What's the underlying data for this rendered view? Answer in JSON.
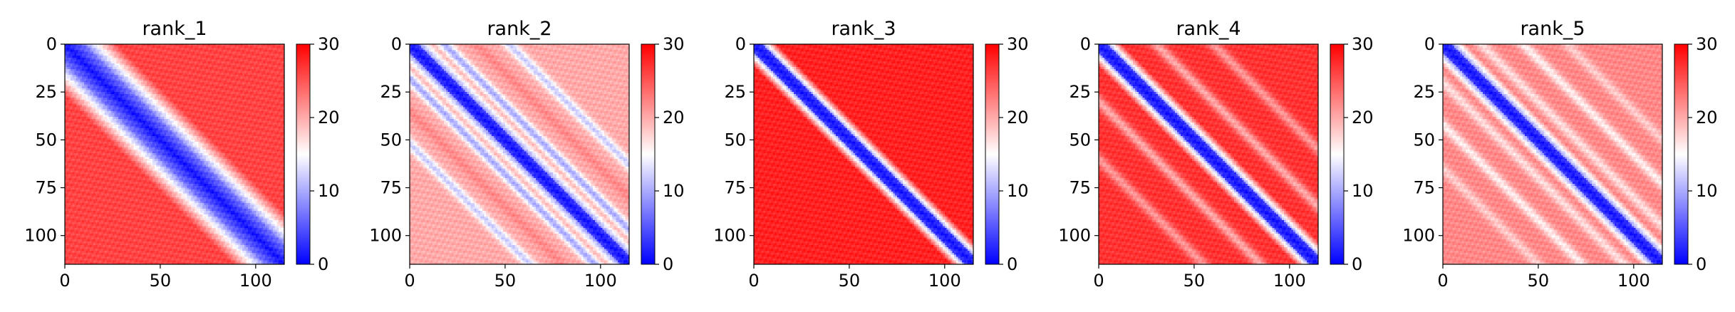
{
  "colormap": {
    "low": "#0000ff",
    "mid": "#ffffff",
    "high": "#ff0000"
  },
  "chart_data": [
    {
      "type": "heatmap",
      "title": "rank_1",
      "size": 115,
      "xticks": [
        0,
        50,
        100
      ],
      "yticks": [
        0,
        25,
        50,
        75,
        100
      ],
      "clim": [
        0,
        30
      ],
      "colorbar_ticks": [
        0,
        10,
        20,
        30
      ],
      "band_width": 10,
      "background_value": 26,
      "crossbands": []
    },
    {
      "type": "heatmap",
      "title": "rank_2",
      "size": 115,
      "xticks": [
        0,
        50,
        100
      ],
      "yticks": [
        0,
        25,
        50,
        75,
        100
      ],
      "clim": [
        0,
        30
      ],
      "colorbar_ticks": [
        0,
        10,
        20,
        30
      ],
      "band_width": 4,
      "background_value": 20,
      "crossbands": [
        {
          "offset": 18,
          "value": 10
        },
        {
          "offset": 35,
          "value": 22
        },
        {
          "offset": 52,
          "value": 12
        }
      ]
    },
    {
      "type": "heatmap",
      "title": "rank_3",
      "size": 115,
      "xticks": [
        0,
        50,
        100
      ],
      "yticks": [
        0,
        25,
        50,
        75,
        100
      ],
      "clim": [
        0,
        30
      ],
      "colorbar_ticks": [
        0,
        10,
        20,
        30
      ],
      "band_width": 4,
      "background_value": 28,
      "crossbands": []
    },
    {
      "type": "heatmap",
      "title": "rank_4",
      "size": 115,
      "xticks": [
        0,
        50,
        100
      ],
      "yticks": [
        0,
        25,
        50,
        75,
        100
      ],
      "clim": [
        0,
        30
      ],
      "colorbar_ticks": [
        0,
        10,
        20,
        30
      ],
      "band_width": 4,
      "background_value": 27,
      "crossbands": [
        {
          "offset": 30,
          "value": 20
        },
        {
          "offset": 60,
          "value": 21
        }
      ]
    },
    {
      "type": "heatmap",
      "title": "rank_5",
      "size": 115,
      "xticks": [
        0,
        50,
        100
      ],
      "yticks": [
        0,
        25,
        50,
        75,
        100
      ],
      "clim": [
        0,
        30
      ],
      "colorbar_ticks": [
        0,
        10,
        20,
        30
      ],
      "band_width": 4,
      "background_value": 22,
      "crossbands": [
        {
          "offset": 20,
          "value": 17
        },
        {
          "offset": 42,
          "value": 16
        },
        {
          "offset": 65,
          "value": 18
        }
      ]
    }
  ]
}
